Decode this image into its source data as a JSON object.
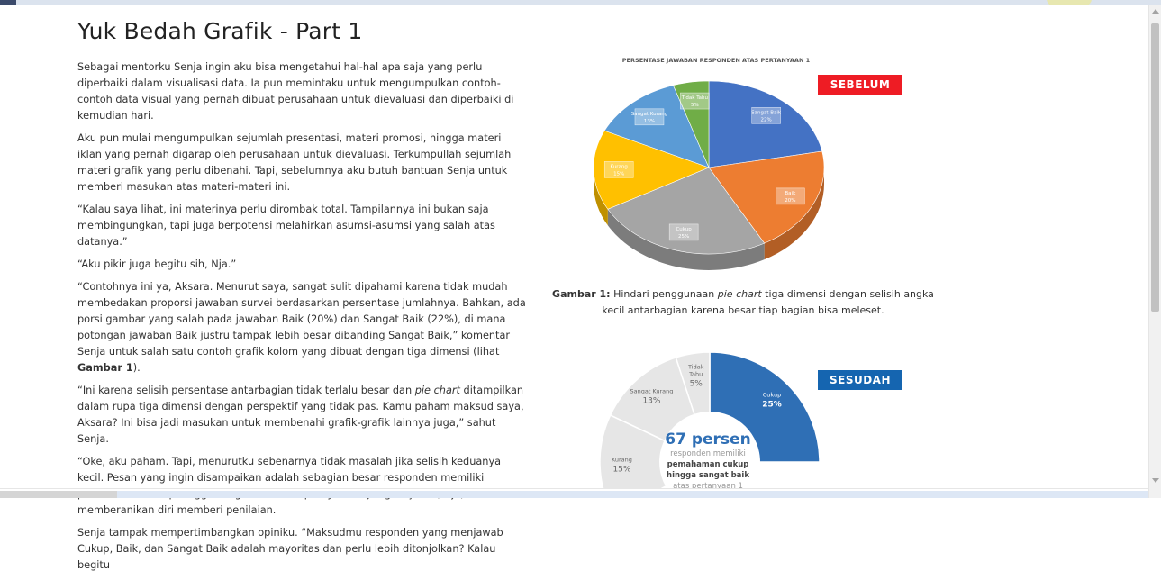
{
  "page": {
    "title": "Yuk Bedah Grafik - Part 1"
  },
  "article": {
    "paragraphs": [
      "Sebagai mentorku Senja ingin aku bisa mengetahui hal-hal apa saja yang perlu diperbaiki dalam visualisasi data. Ia pun memintaku untuk mengumpulkan contoh-contoh data visual yang pernah dibuat perusahaan untuk dievaluasi dan diperbaiki di kemudian hari.",
      "Aku pun mulai mengumpulkan sejumlah presentasi, materi promosi, hingga materi iklan yang pernah digarap oleh perusahaan untuk dievaluasi. Terkumpullah sejumlah materi grafik yang perlu dibenahi. Tapi, sebelumnya aku butuh bantuan Senja untuk memberi masukan atas materi-materi ini.",
      "“Kalau saya lihat, ini materinya perlu dirombak total. Tampilannya ini bukan saja  membingungkan, tapi juga berpotensi melahirkan asumsi-asumsi yang salah atas datanya.”",
      "“Aku pikir juga begitu sih, Nja.”",
      "“Contohnya ini ya, Aksara. Menurut saya, sangat sulit dipahami karena tidak mudah membedakan proporsi jawaban survei berdasarkan persentase jumlahnya. Bahkan, ada porsi gambar yang salah pada jawaban Baik (20%) dan Sangat Baik (22%), di mana potongan jawaban Baik justru tampak lebih besar dibanding Sangat Baik,” komentar Senja untuk salah satu contoh grafik kolom yang dibuat dengan tiga dimensi (lihat ",
      "Gambar 1",
      ").",
      " “Ini karena selisih persentase antarbagian tidak terlalu besar dan ",
      "pie chart",
      " ditampilkan dalam rupa tiga dimensi dengan perspektif yang tidak pas. Kamu paham maksud saya, Aksara? Ini bisa jadi masukan untuk membenahi grafik-grafik lainnya juga,” sahut Senja.",
      "“Oke, aku paham. Tapi, menurutku sebenarnya tidak masalah jika selisih keduanya kecil. Pesan yang ingin disampaikan adalah sebagian besar responden memiliki pemahaman cukup hingga sangat baik atas pernyataan yang diajukan, Nja,” aku memberanikan diri memberi penilaian.",
      "Senja tampak mempertimbangkan opiniku. “Maksudmu responden yang menjawab Cukup, Baik, dan Sangat Baik adalah mayoritas dan perlu lebih ditonjolkan? Kalau begitu"
    ]
  },
  "figure1": {
    "badge": "SEBELUM",
    "caption_label": "Gambar 1:",
    "caption_pre": " Hindari penggunaan ",
    "caption_em": "pie chart",
    "caption_post": " tiga dimensi dengan selisih angka kecil antarbagian karena besar tiap bagian bisa meleset."
  },
  "figure2": {
    "badge": "SESUDAH",
    "center_big": "67 persen",
    "center_line1": "responden memiliki",
    "center_line2": "pemahaman cukup",
    "center_line3": "hingga sangat baik",
    "center_line4": "atas pertanyaan 1"
  },
  "chart_data": [
    {
      "type": "pie",
      "title": "PERSENTASE JAWABAN RESPONDEN ATAS PERTANYAAN 1",
      "categories": [
        "Sangat Baik",
        "Baik",
        "Cukup",
        "Kurang",
        "Sangat Kurang",
        "Tidak Tahu"
      ],
      "values": [
        22,
        20,
        25,
        15,
        13,
        5
      ],
      "labels": [
        "22%",
        "20%",
        "25%",
        "15%",
        "13%",
        "5%"
      ],
      "colors": [
        "#4472c4",
        "#ed7d31",
        "#a5a5a5",
        "#ffc000",
        "#5b9bd5",
        "#70ad47"
      ],
      "style": "3d"
    },
    {
      "type": "pie",
      "title": "",
      "categories": [
        "Cukup",
        "Kurang",
        "Sangat Kurang",
        "Tidak Tahu"
      ],
      "values": [
        25,
        15,
        13,
        5
      ],
      "labels": [
        "25%",
        "15%",
        "13%",
        "5%"
      ],
      "colors": [
        "#2f6fb5",
        "#e6e6e6",
        "#e6e6e6",
        "#e6e6e6"
      ],
      "style": "donut"
    }
  ]
}
